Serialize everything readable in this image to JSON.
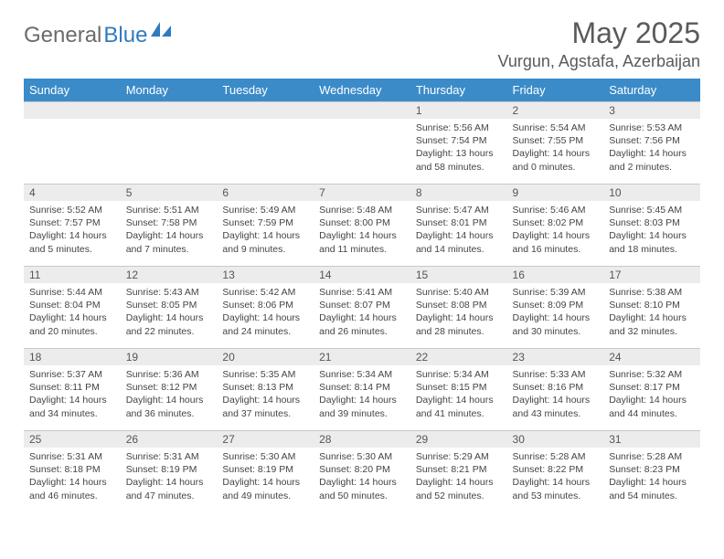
{
  "logo": {
    "text_gray": "General",
    "text_blue": "Blue"
  },
  "title": "May 2025",
  "location": "Vurgun, Agstafa, Azerbaijan",
  "colors": {
    "header_bg": "#3b8bc9",
    "header_text": "#ffffff",
    "daynum_bg": "#ececec",
    "border": "#c9c9c9",
    "text": "#444444",
    "title_text": "#5a5a5a",
    "logo_gray": "#6b6b6b",
    "logo_blue": "#2f7bbf"
  },
  "weekdays": [
    "Sunday",
    "Monday",
    "Tuesday",
    "Wednesday",
    "Thursday",
    "Friday",
    "Saturday"
  ],
  "weeks": [
    [
      null,
      null,
      null,
      null,
      {
        "n": "1",
        "sunrise": "5:56 AM",
        "sunset": "7:54 PM",
        "daylight": "13 hours and 58 minutes."
      },
      {
        "n": "2",
        "sunrise": "5:54 AM",
        "sunset": "7:55 PM",
        "daylight": "14 hours and 0 minutes."
      },
      {
        "n": "3",
        "sunrise": "5:53 AM",
        "sunset": "7:56 PM",
        "daylight": "14 hours and 2 minutes."
      }
    ],
    [
      {
        "n": "4",
        "sunrise": "5:52 AM",
        "sunset": "7:57 PM",
        "daylight": "14 hours and 5 minutes."
      },
      {
        "n": "5",
        "sunrise": "5:51 AM",
        "sunset": "7:58 PM",
        "daylight": "14 hours and 7 minutes."
      },
      {
        "n": "6",
        "sunrise": "5:49 AM",
        "sunset": "7:59 PM",
        "daylight": "14 hours and 9 minutes."
      },
      {
        "n": "7",
        "sunrise": "5:48 AM",
        "sunset": "8:00 PM",
        "daylight": "14 hours and 11 minutes."
      },
      {
        "n": "8",
        "sunrise": "5:47 AM",
        "sunset": "8:01 PM",
        "daylight": "14 hours and 14 minutes."
      },
      {
        "n": "9",
        "sunrise": "5:46 AM",
        "sunset": "8:02 PM",
        "daylight": "14 hours and 16 minutes."
      },
      {
        "n": "10",
        "sunrise": "5:45 AM",
        "sunset": "8:03 PM",
        "daylight": "14 hours and 18 minutes."
      }
    ],
    [
      {
        "n": "11",
        "sunrise": "5:44 AM",
        "sunset": "8:04 PM",
        "daylight": "14 hours and 20 minutes."
      },
      {
        "n": "12",
        "sunrise": "5:43 AM",
        "sunset": "8:05 PM",
        "daylight": "14 hours and 22 minutes."
      },
      {
        "n": "13",
        "sunrise": "5:42 AM",
        "sunset": "8:06 PM",
        "daylight": "14 hours and 24 minutes."
      },
      {
        "n": "14",
        "sunrise": "5:41 AM",
        "sunset": "8:07 PM",
        "daylight": "14 hours and 26 minutes."
      },
      {
        "n": "15",
        "sunrise": "5:40 AM",
        "sunset": "8:08 PM",
        "daylight": "14 hours and 28 minutes."
      },
      {
        "n": "16",
        "sunrise": "5:39 AM",
        "sunset": "8:09 PM",
        "daylight": "14 hours and 30 minutes."
      },
      {
        "n": "17",
        "sunrise": "5:38 AM",
        "sunset": "8:10 PM",
        "daylight": "14 hours and 32 minutes."
      }
    ],
    [
      {
        "n": "18",
        "sunrise": "5:37 AM",
        "sunset": "8:11 PM",
        "daylight": "14 hours and 34 minutes."
      },
      {
        "n": "19",
        "sunrise": "5:36 AM",
        "sunset": "8:12 PM",
        "daylight": "14 hours and 36 minutes."
      },
      {
        "n": "20",
        "sunrise": "5:35 AM",
        "sunset": "8:13 PM",
        "daylight": "14 hours and 37 minutes."
      },
      {
        "n": "21",
        "sunrise": "5:34 AM",
        "sunset": "8:14 PM",
        "daylight": "14 hours and 39 minutes."
      },
      {
        "n": "22",
        "sunrise": "5:34 AM",
        "sunset": "8:15 PM",
        "daylight": "14 hours and 41 minutes."
      },
      {
        "n": "23",
        "sunrise": "5:33 AM",
        "sunset": "8:16 PM",
        "daylight": "14 hours and 43 minutes."
      },
      {
        "n": "24",
        "sunrise": "5:32 AM",
        "sunset": "8:17 PM",
        "daylight": "14 hours and 44 minutes."
      }
    ],
    [
      {
        "n": "25",
        "sunrise": "5:31 AM",
        "sunset": "8:18 PM",
        "daylight": "14 hours and 46 minutes."
      },
      {
        "n": "26",
        "sunrise": "5:31 AM",
        "sunset": "8:19 PM",
        "daylight": "14 hours and 47 minutes."
      },
      {
        "n": "27",
        "sunrise": "5:30 AM",
        "sunset": "8:19 PM",
        "daylight": "14 hours and 49 minutes."
      },
      {
        "n": "28",
        "sunrise": "5:30 AM",
        "sunset": "8:20 PM",
        "daylight": "14 hours and 50 minutes."
      },
      {
        "n": "29",
        "sunrise": "5:29 AM",
        "sunset": "8:21 PM",
        "daylight": "14 hours and 52 minutes."
      },
      {
        "n": "30",
        "sunrise": "5:28 AM",
        "sunset": "8:22 PM",
        "daylight": "14 hours and 53 minutes."
      },
      {
        "n": "31",
        "sunrise": "5:28 AM",
        "sunset": "8:23 PM",
        "daylight": "14 hours and 54 minutes."
      }
    ]
  ],
  "labels": {
    "sunrise": "Sunrise: ",
    "sunset": "Sunset: ",
    "daylight": "Daylight: "
  }
}
